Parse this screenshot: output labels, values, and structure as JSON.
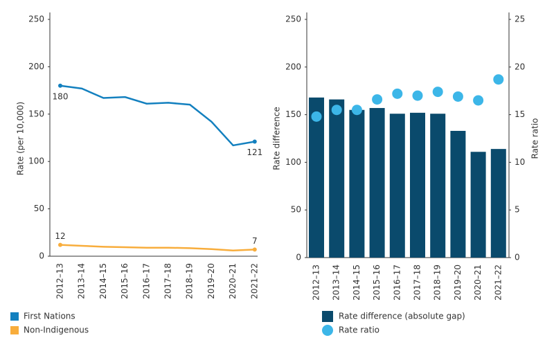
{
  "chart_data": [
    {
      "type": "line",
      "y_label": "Rate (per 10,000)",
      "categories": [
        "2012–13",
        "2013–14",
        "2014–15",
        "2015–16",
        "2016–17",
        "2017–18",
        "2018–19",
        "2019–20",
        "2020–21",
        "2021–22"
      ],
      "series": [
        {
          "name": "First Nations",
          "color": "#1380bf",
          "values": [
            180,
            177,
            167,
            168,
            161,
            162,
            160,
            142,
            117,
            121
          ],
          "value_labels": [
            "180",
            null,
            null,
            null,
            null,
            null,
            null,
            null,
            null,
            "121"
          ]
        },
        {
          "name": "Non-Indigenous",
          "color": "#f8ad3c",
          "values": [
            12,
            11,
            10,
            9.5,
            9,
            9,
            8.5,
            7.5,
            6,
            7
          ],
          "value_labels": [
            "12",
            null,
            null,
            null,
            null,
            null,
            null,
            null,
            null,
            "7"
          ]
        }
      ],
      "ylim": [
        0,
        250
      ],
      "yticks": [
        0,
        50,
        100,
        150,
        200,
        250
      ]
    },
    {
      "type": "combo",
      "y_label": "Rate difference",
      "y2_label": "Rate ratio",
      "categories": [
        "2012–13",
        "2013–14",
        "2014–15",
        "2015–16",
        "2016–17",
        "2017–18",
        "2018–19",
        "2019–20",
        "2020–21",
        "2021–22"
      ],
      "series": [
        {
          "name": "Rate difference (absolute gap)",
          "color": "#0a4a6c",
          "mark": "bar",
          "values": [
            168,
            166,
            155,
            157,
            151,
            152,
            151,
            133,
            111,
            114
          ]
        },
        {
          "name": "Rate ratio",
          "color": "#3cb6e8",
          "mark": "dot",
          "axis": "y2",
          "values": [
            14.8,
            15.5,
            15.5,
            16.6,
            17.2,
            17.0,
            17.4,
            16.9,
            16.5,
            18.7
          ]
        }
      ],
      "ylim": [
        0,
        250
      ],
      "yticks": [
        0,
        50,
        100,
        150,
        200,
        250
      ],
      "y2lim": [
        0,
        25
      ],
      "y2ticks": [
        0,
        5,
        10,
        15,
        20,
        25
      ]
    }
  ]
}
